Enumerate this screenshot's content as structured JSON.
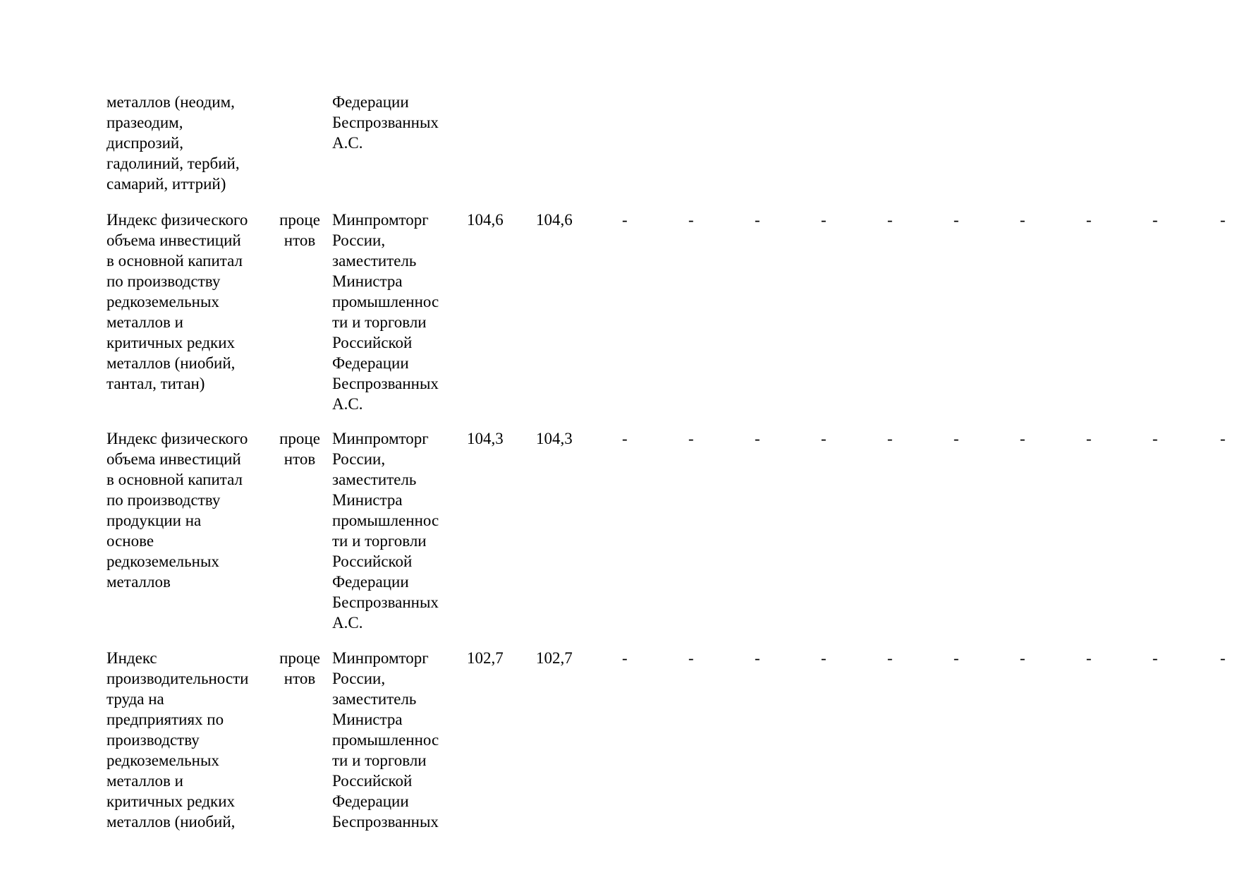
{
  "rows": [
    {
      "name": "металлов (неодим,\nпразеодим,\nдиспрозий,\nгадолиний, тербий,\nсамарий, иттрий)",
      "unit": "",
      "responsible": "Федерации\nБеспрозванных\nА.С.",
      "value1": "",
      "value2": "",
      "dashes": []
    },
    {
      "name": "Индекс физического\nобъема инвестиций\nв основной капитал\nпо производству\nредкоземельных\nметаллов и\nкритичных редких\nметаллов (ниобий,\nтантал, титан)",
      "unit": "проце\nнтов",
      "responsible": "Минпромторг\nРоссии,\nзаместитель\nМинистра\nпромышленнос\nти и торговли\nРоссийской\nФедерации\nБеспрозванных\nА.С.",
      "value1": "104,6",
      "value2": "104,6",
      "dashes": [
        "-",
        "-",
        "-",
        "-",
        "-",
        "-",
        "-",
        "-",
        "-",
        "-"
      ]
    },
    {
      "name": "Индекс физического\nобъема инвестиций\nв основной капитал\nпо производству\nпродукции на\nоснове\nредкоземельных\nметаллов",
      "unit": "проце\nнтов",
      "responsible": "Минпромторг\nРоссии,\nзаместитель\nМинистра\nпромышленнос\nти и торговли\nРоссийской\nФедерации\nБеспрозванных\nА.С.",
      "value1": "104,3",
      "value2": "104,3",
      "dashes": [
        "-",
        "-",
        "-",
        "-",
        "-",
        "-",
        "-",
        "-",
        "-",
        "-"
      ]
    },
    {
      "name": "Индекс\nпроизводительности\nтруда на\nпредприятиях по\nпроизводству\nредкоземельных\nметаллов и\nкритичных редких\nметаллов (ниобий,",
      "unit": "проце\nнтов",
      "responsible": "Минпромторг\nРоссии,\nзаместитель\nМинистра\nпромышленнос\nти и торговли\nРоссийской\nФедерации\nБеспрозванных",
      "value1": "102,7",
      "value2": "102,7",
      "dashes": [
        "-",
        "-",
        "-",
        "-",
        "-",
        "-",
        "-",
        "-",
        "-",
        "-"
      ]
    }
  ]
}
